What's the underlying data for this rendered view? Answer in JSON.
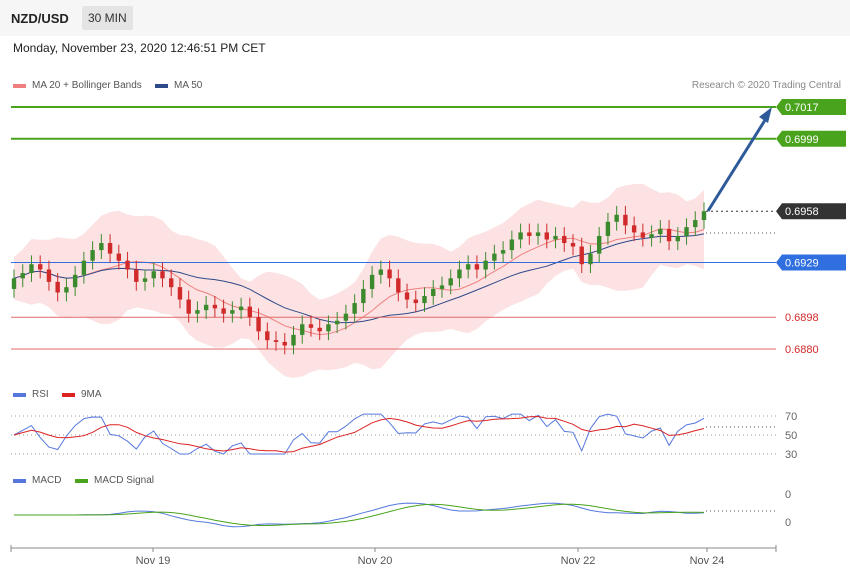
{
  "header": {
    "pair": "NZD/USD",
    "timeframe": "30 MIN"
  },
  "datetime": "Monday, November 23, 2020 12:46:51 PM CET",
  "legend": {
    "ma20": "MA 20 + Bollinger Bands",
    "ma50": "MA 50",
    "rsi": "RSI",
    "rsi_ma": "9MA",
    "macd": "MACD",
    "macd_signal": "MACD Signal"
  },
  "credit": "Research © 2020 Trading Central",
  "colors": {
    "up": "#3c8a2e",
    "down": "#d02a2a",
    "ma20": "#f08080",
    "ma50": "#2e4a8a",
    "resistance": "#4aa31c",
    "pivot": "#2f6fe0",
    "support": "#e06a6a",
    "arrow": "#2e5a9a",
    "rsi": "#5577dd",
    "rsi_ma": "#dd2222",
    "macd": "#5577dd",
    "macd_signal": "#4aa31c"
  },
  "chart_data": {
    "type": "candlestick",
    "x_labels": [
      "Nov 19",
      "Nov 20",
      "Nov 22",
      "Nov 24"
    ],
    "price_levels": [
      {
        "label": "0.7017",
        "value": 0.7017,
        "role": "resistance"
      },
      {
        "label": "0.6999",
        "value": 0.6999,
        "role": "resistance"
      },
      {
        "label": "0.6958",
        "value": 0.6958,
        "role": "last"
      },
      {
        "label": "0.6929",
        "value": 0.6929,
        "role": "pivot"
      },
      {
        "label": "0.6898",
        "value": 0.6898,
        "role": "support"
      },
      {
        "label": "0.6880",
        "value": 0.688,
        "role": "support"
      }
    ],
    "closes": [
      0.692,
      0.6923,
      0.6928,
      0.6925,
      0.6918,
      0.6912,
      0.6915,
      0.6922,
      0.693,
      0.6936,
      0.694,
      0.6934,
      0.693,
      0.6925,
      0.6918,
      0.692,
      0.6924,
      0.692,
      0.6915,
      0.6908,
      0.69,
      0.6902,
      0.6905,
      0.6903,
      0.69,
      0.6902,
      0.6904,
      0.6898,
      0.689,
      0.6885,
      0.6884,
      0.6882,
      0.6888,
      0.6894,
      0.6892,
      0.689,
      0.6894,
      0.6896,
      0.69,
      0.6906,
      0.6914,
      0.6922,
      0.6925,
      0.692,
      0.6912,
      0.6908,
      0.6906,
      0.691,
      0.6914,
      0.6916,
      0.692,
      0.6925,
      0.6928,
      0.6925,
      0.693,
      0.6934,
      0.6936,
      0.6942,
      0.6946,
      0.6944,
      0.6946,
      0.6942,
      0.6944,
      0.694,
      0.6938,
      0.6928,
      0.6934,
      0.6944,
      0.6952,
      0.6956,
      0.695,
      0.6946,
      0.6943,
      0.6945,
      0.6948,
      0.6941,
      0.6944,
      0.6949,
      0.6953,
      0.6958
    ],
    "rsi_levels": [
      70,
      50,
      30
    ],
    "macd_levels": [
      "0",
      "0"
    ]
  }
}
